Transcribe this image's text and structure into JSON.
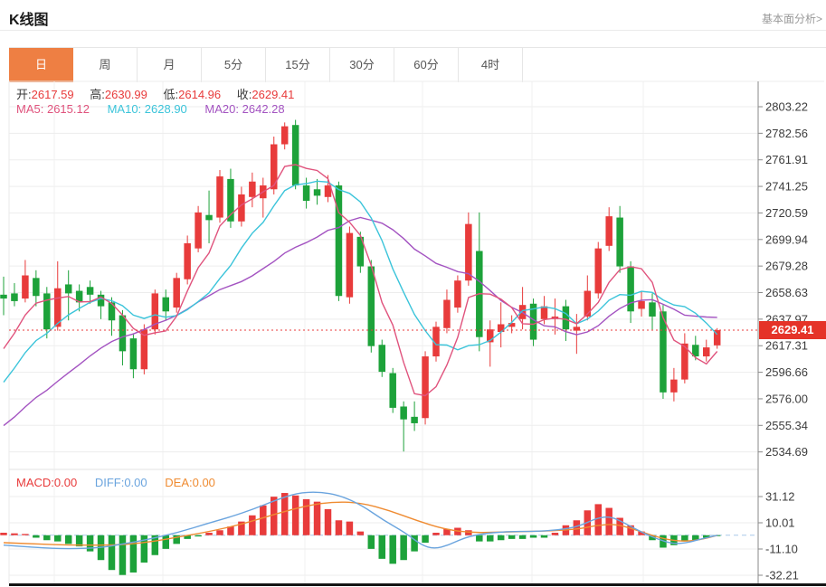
{
  "header": {
    "title": "K线图",
    "link": "基本面分析>"
  },
  "tabs": [
    {
      "label": "日",
      "active": true
    },
    {
      "label": "周",
      "active": false
    },
    {
      "label": "月",
      "active": false
    },
    {
      "label": "5分",
      "active": false
    },
    {
      "label": "15分",
      "active": false
    },
    {
      "label": "30分",
      "active": false
    },
    {
      "label": "60分",
      "active": false
    },
    {
      "label": "4时",
      "active": false
    }
  ],
  "info_bar": {
    "open_label": "开:",
    "open": "2617.59",
    "high_label": "高:",
    "high": "2630.99",
    "low_label": "低:",
    "low": "2614.96",
    "close_label": "收:",
    "close": "2629.41"
  },
  "ma_bar": {
    "ma5_label": "MA5:",
    "ma5": "2615.12",
    "ma10_label": "MA10:",
    "ma10": "2628.90",
    "ma20_label": "MA20:",
    "ma20": "2642.28"
  },
  "macd_bar": {
    "macd_label": "MACD:",
    "macd": "0.00",
    "diff_label": "DIFF:",
    "diff": "0.00",
    "dea_label": "DEA:",
    "dea": "0.00"
  },
  "price_marker": {
    "value": "2629.41"
  },
  "colors": {
    "up": "#e83b3b",
    "down": "#1da23a",
    "ma5": "#e0537d",
    "ma10": "#3bc4da",
    "ma20": "#a353c1",
    "diff": "#6aa4de",
    "dea": "#ef8b31",
    "accent": "#ee7f43",
    "marker_bg": "#e53328",
    "grid": "#ededed",
    "vgrid": "#f2f2f2",
    "axis": "#8a8a8a",
    "zero_line": "#a9c9ea",
    "bottom_border": "#141414"
  },
  "chart_data": {
    "type": "candlestick",
    "title": "K线图",
    "legend": [
      "MA5",
      "MA10",
      "MA20"
    ],
    "y_axis_ticks": [
      2803.22,
      2782.56,
      2761.91,
      2741.25,
      2720.59,
      2699.94,
      2679.28,
      2658.63,
      2637.97,
      2617.31,
      2596.66,
      2576.0,
      2555.34,
      2534.69
    ],
    "last_price": 2629.41,
    "prehistory_closes": [
      2518,
      2514,
      2510,
      2516,
      2522,
      2528,
      2524,
      2520,
      2527,
      2534,
      2542,
      2552,
      2562,
      2574,
      2584,
      2592,
      2601,
      2610,
      2618
    ],
    "candles": [
      [
        2657,
        2671,
        2641,
        2654
      ],
      [
        2658,
        2666,
        2648,
        2652
      ],
      [
        2654,
        2684,
        2651,
        2672
      ],
      [
        2670,
        2676,
        2648,
        2656
      ],
      [
        2658,
        2663,
        2623,
        2630
      ],
      [
        2632,
        2683,
        2629,
        2662
      ],
      [
        2665,
        2676,
        2637,
        2658
      ],
      [
        2660,
        2665,
        2644,
        2651
      ],
      [
        2663,
        2668,
        2650,
        2657
      ],
      [
        2657,
        2660,
        2638,
        2648
      ],
      [
        2651,
        2655,
        2625,
        2637
      ],
      [
        2641,
        2645,
        2602,
        2613
      ],
      [
        2623,
        2627,
        2592,
        2599
      ],
      [
        2599,
        2634,
        2595,
        2630
      ],
      [
        2630,
        2661,
        2626,
        2658
      ],
      [
        2655,
        2661,
        2637,
        2644
      ],
      [
        2647,
        2674,
        2643,
        2670
      ],
      [
        2669,
        2703,
        2665,
        2697
      ],
      [
        2693,
        2726,
        2690,
        2721
      ],
      [
        2719,
        2738,
        2697,
        2715
      ],
      [
        2717,
        2754,
        2713,
        2749
      ],
      [
        2747,
        2755,
        2709,
        2714
      ],
      [
        2714,
        2741,
        2710,
        2735
      ],
      [
        2733,
        2752,
        2725,
        2745
      ],
      [
        2732,
        2748,
        2717,
        2742
      ],
      [
        2739,
        2780,
        2735,
        2774
      ],
      [
        2774,
        2791,
        2770,
        2788
      ],
      [
        2789,
        2793,
        2739,
        2742
      ],
      [
        2742,
        2748,
        2724,
        2730
      ],
      [
        2739,
        2747,
        2727,
        2734
      ],
      [
        2733,
        2750,
        2729,
        2742
      ],
      [
        2742,
        2745,
        2652,
        2656
      ],
      [
        2655,
        2710,
        2650,
        2705
      ],
      [
        2702,
        2706,
        2674,
        2679
      ],
      [
        2679,
        2684,
        2612,
        2617
      ],
      [
        2618,
        2622,
        2593,
        2597
      ],
      [
        2596,
        2600,
        2565,
        2569
      ],
      [
        2570,
        2574,
        2535,
        2560
      ],
      [
        2562,
        2574,
        2551,
        2557
      ],
      [
        2561,
        2613,
        2556,
        2609
      ],
      [
        2609,
        2636,
        2605,
        2632
      ],
      [
        2631,
        2661,
        2627,
        2653
      ],
      [
        2647,
        2672,
        2643,
        2668
      ],
      [
        2668,
        2721,
        2664,
        2712
      ],
      [
        2691,
        2721,
        2613,
        2624
      ],
      [
        2620,
        2637,
        2601,
        2630
      ],
      [
        2628,
        2651,
        2616,
        2634
      ],
      [
        2632,
        2641,
        2627,
        2635
      ],
      [
        2638,
        2663,
        2630,
        2649
      ],
      [
        2650,
        2654,
        2617,
        2622
      ],
      [
        2638,
        2656,
        2634,
        2648
      ],
      [
        2638,
        2654,
        2626,
        2640
      ],
      [
        2648,
        2653,
        2621,
        2630
      ],
      [
        2629,
        2642,
        2611,
        2632
      ],
      [
        2640,
        2672,
        2637,
        2660
      ],
      [
        2658,
        2698,
        2654,
        2693
      ],
      [
        2695,
        2725,
        2691,
        2718
      ],
      [
        2717,
        2726,
        2674,
        2679
      ],
      [
        2679,
        2683,
        2635,
        2644
      ],
      [
        2646,
        2660,
        2640,
        2652
      ],
      [
        2651,
        2658,
        2630,
        2640
      ],
      [
        2644,
        2649,
        2576,
        2581
      ],
      [
        2581,
        2600,
        2574,
        2591
      ],
      [
        2591,
        2627,
        2588,
        2619
      ],
      [
        2618,
        2625,
        2606,
        2609
      ],
      [
        2609,
        2622,
        2605,
        2616
      ],
      [
        2617.59,
        2630.99,
        2614.96,
        2629.41
      ]
    ],
    "macd": {
      "y_axis_ticks": [
        31.12,
        10.01,
        -11.1,
        -32.21
      ],
      "hist": [
        2,
        1.5,
        1,
        -2,
        -4,
        -5,
        -7,
        -9,
        -13,
        -20,
        -28,
        -32,
        -30,
        -22,
        -16,
        -11,
        -7,
        -3,
        -1,
        2,
        4,
        7,
        11,
        16,
        24,
        31,
        34,
        32,
        29,
        27,
        21,
        12,
        11,
        3,
        -11,
        -19,
        -23,
        -20,
        -13,
        -6,
        2,
        5,
        6,
        4,
        -5,
        -5,
        -4,
        -3,
        -3,
        -2,
        -2,
        2,
        8,
        12,
        20,
        25,
        22,
        14,
        8,
        3,
        -4,
        -10,
        -8,
        -5,
        -4,
        -2,
        -0.5
      ],
      "diff_points": [
        [
          4,
          -8
        ],
        [
          40,
          -10
        ],
        [
          76,
          -11
        ],
        [
          112,
          -10
        ],
        [
          136,
          -7
        ],
        [
          160,
          -4
        ],
        [
          196,
          2
        ],
        [
          232,
          10
        ],
        [
          256,
          15
        ],
        [
          280,
          21
        ],
        [
          304,
          28
        ],
        [
          328,
          34
        ],
        [
          352,
          35
        ],
        [
          376,
          32
        ],
        [
          400,
          24
        ],
        [
          424,
          12
        ],
        [
          448,
          2
        ],
        [
          466,
          -8
        ],
        [
          480,
          -11
        ],
        [
          496,
          -8
        ],
        [
          510,
          -3
        ],
        [
          530,
          1
        ],
        [
          560,
          3
        ],
        [
          590,
          3
        ],
        [
          615,
          4
        ],
        [
          640,
          7
        ],
        [
          660,
          14
        ],
        [
          675,
          15
        ],
        [
          690,
          10
        ],
        [
          710,
          2
        ],
        [
          730,
          -4
        ],
        [
          745,
          -7
        ],
        [
          760,
          -6
        ],
        [
          775,
          -3
        ],
        [
          793,
          0
        ]
      ],
      "dea_points": [
        [
          4,
          -6
        ],
        [
          40,
          -7
        ],
        [
          76,
          -8
        ],
        [
          112,
          -8
        ],
        [
          140,
          -7.5
        ],
        [
          170,
          -5
        ],
        [
          200,
          -1
        ],
        [
          232,
          3
        ],
        [
          268,
          9
        ],
        [
          304,
          17
        ],
        [
          340,
          24
        ],
        [
          370,
          27
        ],
        [
          400,
          26
        ],
        [
          430,
          20
        ],
        [
          460,
          12
        ],
        [
          490,
          5
        ],
        [
          520,
          2
        ],
        [
          550,
          2.5
        ],
        [
          580,
          3
        ],
        [
          610,
          3.5
        ],
        [
          640,
          5
        ],
        [
          660,
          8
        ],
        [
          680,
          9
        ],
        [
          700,
          5
        ],
        [
          720,
          0
        ],
        [
          740,
          -4
        ],
        [
          760,
          -5
        ],
        [
          778,
          -3
        ],
        [
          793,
          0
        ]
      ]
    }
  }
}
